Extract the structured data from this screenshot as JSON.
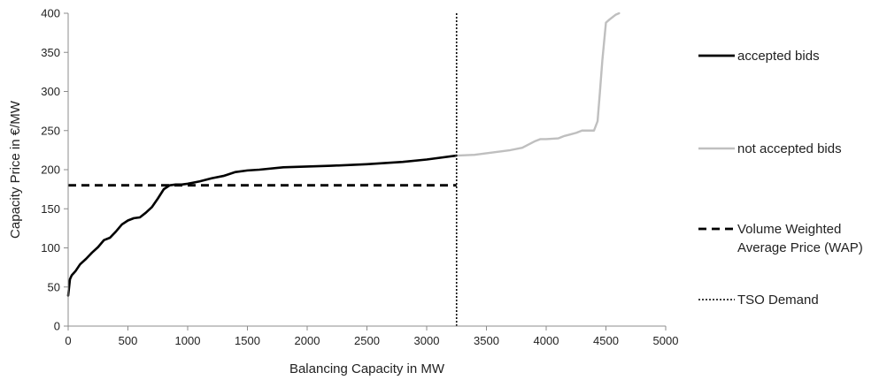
{
  "chart_data": {
    "type": "line",
    "title": "",
    "xlabel": "Balancing Capacity in MW",
    "ylabel": "Capacity Price in €/MW",
    "xlim": [
      0,
      5000
    ],
    "ylim": [
      0,
      400
    ],
    "x_ticks": [
      0,
      500,
      1000,
      1500,
      2000,
      2500,
      3000,
      3500,
      4000,
      4500,
      5000
    ],
    "y_ticks": [
      0,
      50,
      100,
      150,
      200,
      250,
      300,
      350,
      400
    ],
    "x_tick_labels": [
      "0",
      "500",
      "1000",
      "1500",
      "2000",
      "2500",
      "3000",
      "3500",
      "4000",
      "4500",
      "5000"
    ],
    "y_tick_labels": [
      "0",
      "50",
      "100",
      "150",
      "200",
      "250",
      "300",
      "350",
      "400"
    ],
    "grid": false,
    "legend_position": "right",
    "series": [
      {
        "name": "accepted bids",
        "color": "#000000",
        "style": "solid",
        "x": [
          0,
          15,
          30,
          60,
          100,
          150,
          200,
          250,
          300,
          350,
          400,
          450,
          500,
          550,
          600,
          650,
          700,
          750,
          800,
          850,
          900,
          950,
          1000,
          1100,
          1200,
          1300,
          1400,
          1500,
          1600,
          1800,
          2000,
          2200,
          2500,
          2800,
          3000,
          3250
        ],
        "y": [
          39,
          60,
          65,
          70,
          79,
          86,
          94,
          101,
          110,
          113,
          121,
          130,
          135,
          138,
          139,
          145,
          152,
          163,
          175,
          180,
          181,
          181,
          182,
          185,
          189,
          192,
          197,
          199,
          200,
          203,
          204,
          205,
          207,
          210,
          213,
          218
        ]
      },
      {
        "name": "not accepted bids",
        "color": "#bfbfbf",
        "style": "solid",
        "x": [
          3250,
          3400,
          3500,
          3600,
          3700,
          3800,
          3850,
          3900,
          3950,
          4000,
          4100,
          4150,
          4200,
          4250,
          4300,
          4400,
          4430,
          4450,
          4470,
          4500,
          4530,
          4580,
          4610
        ],
        "y": [
          218,
          219,
          221,
          223,
          225,
          228,
          232,
          236,
          239,
          239,
          240,
          243,
          245,
          247,
          250,
          250,
          262,
          300,
          340,
          388,
          392,
          398,
          400
        ]
      },
      {
        "name": "Volume Weighted Average Price (WAP)",
        "legend_lines": [
          "Volume Weighted",
          "Average Price (WAP)"
        ],
        "color": "#000000",
        "style": "dashed",
        "x": [
          0,
          3250
        ],
        "y": [
          180,
          180
        ]
      },
      {
        "name": "TSO Demand",
        "color": "#000000",
        "style": "dotted",
        "x": [
          3250,
          3250
        ],
        "y": [
          0,
          400
        ]
      }
    ]
  }
}
